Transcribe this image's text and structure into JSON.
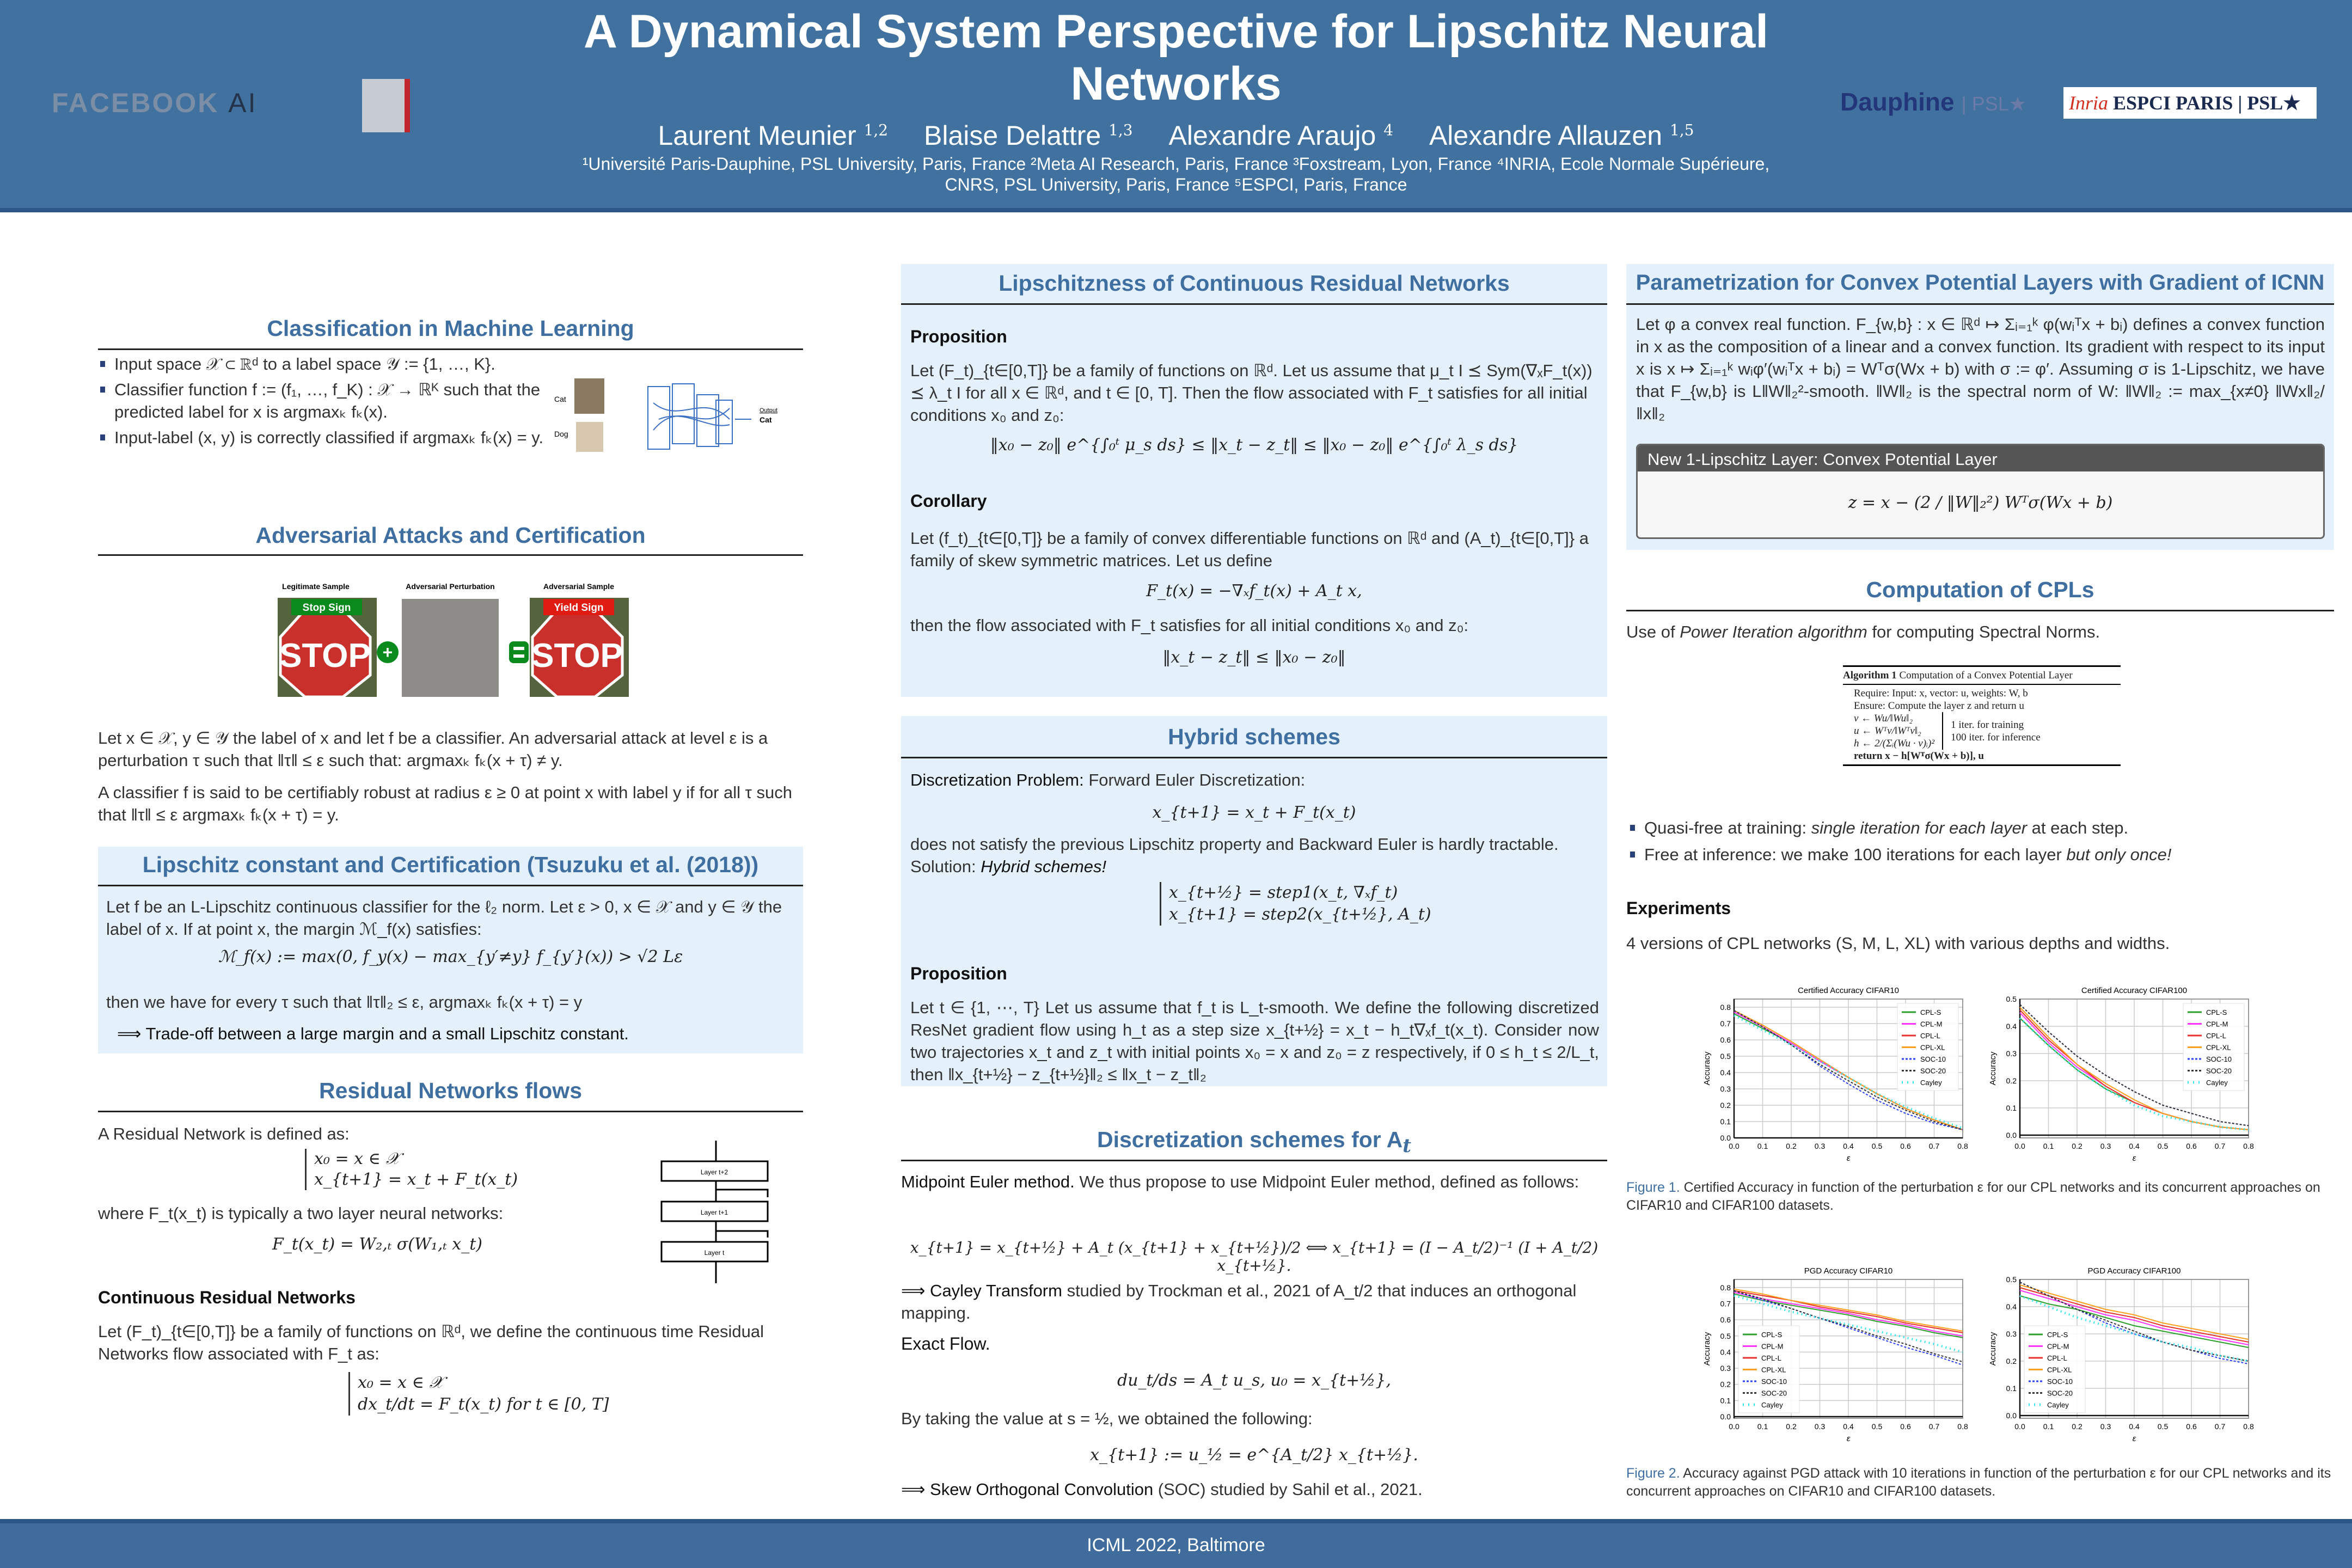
{
  "header": {
    "title": "A Dynamical System Perspective for Lipschitz Neural Networks",
    "authors": [
      {
        "name": "Laurent Meunier",
        "sup": "1,2"
      },
      {
        "name": "Blaise Delattre",
        "sup": "1,3"
      },
      {
        "name": "Alexandre Araujo",
        "sup": "4"
      },
      {
        "name": "Alexandre Allauzen",
        "sup": "1,5"
      }
    ],
    "affiliations": "¹Université Paris-Dauphine, PSL University, Paris, France    ²Meta AI Research, Paris, France ³Foxstream, Lyon, France ⁴INRIA, Ecole Normale Supérieure, CNRS, PSL University, Paris, France ⁵ESPCI, Paris, France",
    "logos": {
      "facebook": "FACEBOOK",
      "facebook_ai": "AI",
      "dauphine": "Dauphine",
      "psl": "| PSL★",
      "inria": "Inria",
      "espci": "ESPCI",
      "paris_psl": "PARIS | PSL★"
    }
  },
  "footer": "ICML 2022, Baltimore",
  "left": {
    "classification": {
      "title": "Classification in Machine Learning",
      "bullets": [
        "Input space 𝒳 ⊂ ℝᵈ to a label space 𝒴 := {1, …, K}.",
        "Classifier function f := (f₁, …, f_K) : 𝒳 → ℝᴷ such that the predicted label for x is argmaxₖ fₖ(x).",
        "Input-label (x, y) is correctly classified if argmaxₖ fₖ(x) = y."
      ],
      "fig_labels": {
        "cat": "Cat",
        "dog": "Dog",
        "output": "Output",
        "output_class": "Cat"
      }
    },
    "adversarial": {
      "title": "Adversarial Attacks and Certification",
      "fig": {
        "legit": "Legitimate Sample",
        "perturb": "Adversarial Perturbation",
        "adv": "Adversarial Sample",
        "stop_label": "Stop Sign",
        "yield_label": "Yield Sign",
        "sign_text": "STOP"
      },
      "p1": "Let x ∈ 𝒳, y ∈ 𝒴 the label of x and let f be a classifier. An adversarial attack at level ε is a perturbation τ such that ‖τ‖ ≤ ε such that: argmaxₖ fₖ(x + τ) ≠ y.",
      "p2": "A classifier f is said to be certifiably robust at radius ε ≥ 0 at point x with label y if for all τ such that ‖τ‖ ≤ ε argmaxₖ fₖ(x + τ) = y."
    },
    "lipschitz": {
      "title": "Lipschitz constant and Certification (Tsuzuku et al. (2018))",
      "p1": "Let f be an L-Lipschitz continuous classifier for the ℓ₂ norm. Let ε > 0, x ∈ 𝒳 and y ∈ 𝒴 the label of x. If at point x, the margin ℳ_f(x) satisfies:",
      "eq": "ℳ_f(x) := max(0, f_y(x) − max_{y′≠y} f_{y′}(x)) > √2 Lε",
      "p2": "then we have for every τ such that ‖τ‖₂ ≤ ε, argmaxₖ fₖ(x + τ) = y",
      "p3": "⟹  Trade-off between a large margin and a small Lipschitz constant."
    },
    "residual": {
      "title": "Residual Networks flows",
      "p1": "A Residual Network is defined as:",
      "eq1a": "x₀   = x ∈ 𝒳",
      "eq1b": "x_{t+1} = x_t + F_t(x_t)",
      "p2": "where F_t(x_t) is typically a two layer neural networks:",
      "eq2": "F_t(x_t) = W₂,ₜ σ(W₁,ₜ x_t)",
      "layers": [
        "Layer t+2",
        "Layer t+1",
        "Layer t"
      ],
      "sub": "Continuous Residual Networks",
      "p3": "Let (F_t)_{t∈[0,T]} be a family of functions on ℝᵈ, we define the continuous time Residual Networks flow associated with F_t as:",
      "eq3a": "x₀ = x ∈ 𝒳",
      "eq3b": "dx_t/dt = F_t(x_t) for t ∈ [0, T]"
    }
  },
  "middle": {
    "lipcont": {
      "title": "Lipschitzness of Continuous Residual Networks",
      "prop": "Proposition",
      "p1": "Let (F_t)_{t∈[0,T]} be a family of functions on ℝᵈ. Let us assume that μ_t I ⪯ Sym(∇ₓF_t(x)) ⪯ λ_t I for all x ∈ ℝᵈ, and t ∈ [0, T]. Then the flow associated with F_t satisfies for all initial conditions x₀ and z₀:",
      "eq1": "‖x₀ − z₀‖ e^{∫₀ᵗ μ_s ds} ≤ ‖x_t − z_t‖ ≤ ‖x₀ − z₀‖ e^{∫₀ᵗ λ_s ds}",
      "cor": "Corollary",
      "p2": "Let (f_t)_{t∈[0,T]} be a family of convex differentiable functions on ℝᵈ and (A_t)_{t∈[0,T]} a family of skew symmetric matrices. Let us define",
      "eq2": "F_t(x) = −∇ₓf_t(x) + A_t x,",
      "p3": "then the flow associated with F_t satisfies for all initial conditions x₀ and z₀:",
      "eq3": "‖x_t − z_t‖ ≤ ‖x₀ − z₀‖"
    },
    "hybrid": {
      "title": "Hybrid schemes",
      "p1_b": "Discretization Problem:",
      "p1": " Forward Euler Discretization:",
      "eq1": "x_{t+1} = x_t + F_t(x_t)",
      "p2": "does not satisfy the previous Lipschitz property and Backward Euler is hardly tractable. Solution: ",
      "p2_i": "Hybrid schemes!",
      "eq2a": "x_{t+½}  = step1(x_t, ∇ₓf_t)",
      "eq2b": "x_{t+1}  = step2(x_{t+½}, A_t)",
      "prop": "Proposition",
      "p3": "Let t ∈ {1, ⋯, T} Let us assume that f_t is L_t-smooth. We define the following discretized ResNet gradient flow using h_t as a step size x_{t+½} = x_t − h_t∇ₓf_t(x_t). Consider now two trajectories x_t and z_t with initial points x₀ = x and z₀ = z respectively, if 0 ≤ h_t ≤ 2/L_t, then ‖x_{t+½} − z_{t+½}‖₂ ≤ ‖x_t − z_t‖₂"
    },
    "disc": {
      "title": "Discretization schemes for A",
      "title_sub": "t",
      "p1_b": "Midpoint Euler method.",
      "p1": " We thus propose to use Midpoint Euler method, defined as follows:",
      "eq1": "x_{t+1} = x_{t+½} + A_t (x_{t+1} + x_{t+½})/2  ⟺  x_{t+1} = (I − A_t/2)⁻¹ (I + A_t/2) x_{t+½}.",
      "p2_b": "⟹  Cayley Transform",
      "p2": " studied by Trockman et al., 2021 of A_t/2 that induces an orthogonal mapping.",
      "sub": "Exact Flow.",
      "eq2": "du_t/ds = A_t u_s,    u₀ = x_{t+½},",
      "p3": "By taking the value at s = ½, we obtained the following:",
      "eq3": "x_{t+1} := u_½ = e^{A_t/2} x_{t+½}.",
      "p4_b": "⟹  Skew Orthogonal Convolution",
      "p4": " (SOC) studied by Sahil et al., 2021."
    }
  },
  "right": {
    "param": {
      "title": "Parametrization for Convex Potential Layers with Gradient of ICNN",
      "p1": "Let φ a convex real function. F_{w,b} : x ∈ ℝᵈ ↦ Σᵢ₌₁ᵏ φ(wᵢᵀx + bᵢ) defines a convex function in x as the composition of a linear and a convex function. Its gradient with respect to its input x is x ↦ Σᵢ₌₁ᵏ wᵢφ′(wᵢᵀx + bᵢ) = Wᵀσ(Wx + b) with σ := φ′. Assuming σ is 1-Lipschitz, we have that F_{w,b} is L‖W‖₂²-smooth. ‖W‖₂ is the spectral norm of W: ‖W‖₂ := max_{x≠0} ‖Wx‖₂/‖x‖₂",
      "box_title": "New 1-Lipschitz Layer: Convex Potential Layer",
      "box_eq": "z = x − (2 / ‖W‖₂²) Wᵀσ(Wx + b)"
    },
    "cpl": {
      "title": "Computation of CPLs",
      "p1": "Use of ",
      "p1_i": "Power Iteration algorithm",
      "p1_end": " for computing Spectral Norms.",
      "alg": {
        "title_b": "Algorithm 1",
        "title": " Computation of a Convex Potential Layer",
        "require": "Require: Input: x, vector: u, weights: W, b",
        "ensure": "Ensure: Compute the layer z and return u",
        "l1": "v ← Wu/‖Wu‖₂",
        "l2": "u ← Wᵀv/‖Wᵀv‖₂",
        "l3": "h ← 2/(Σᵢ(Wu · v)ᵢ)²",
        "note1": "1 iter. for training",
        "note2": "100 iter. for inference",
        "ret": "return x − h[Wᵀσ(Wx + b)], u"
      },
      "bullets": [
        {
          "a": "Quasi-free at training: ",
          "i": "single iteration for each layer",
          "b": " at each step."
        },
        {
          "a": "Free at inference: we make 100 iterations for each layer ",
          "i": "but only once!",
          "b": ""
        }
      ],
      "exp_title": "Experiments",
      "exp_text": "4 versions of CPL networks (S, M, L, XL) with various depths and widths.",
      "fig1_label": "Figure 1.",
      "fig1_cap": " Certified Accuracy in function of the perturbation ε for our CPL networks and its concurrent approaches on CIFAR10 and CIFAR100 datasets.",
      "fig2_label": "Figure 2.",
      "fig2_cap": " Accuracy against PGD attack with 10 iterations in function of the perturbation ε for our CPL networks and its concurrent approaches on CIFAR10 and CIFAR100 datasets."
    }
  },
  "chart_data": [
    {
      "type": "line",
      "title": "Certified Accuracy CIFAR10",
      "xlabel": "ε",
      "ylabel": "Accuracy",
      "x": [
        0,
        0.1,
        0.2,
        0.3,
        0.4,
        0.5,
        0.6,
        0.7,
        0.8
      ],
      "xlim": [
        0,
        0.8
      ],
      "ylim": [
        0,
        0.85
      ],
      "yticks": [
        0,
        0.1,
        0.2,
        0.3,
        0.4,
        0.5,
        0.6,
        0.7,
        0.8
      ],
      "grid": true,
      "legend": "top-right",
      "series": [
        {
          "name": "CPL-S",
          "color": "#2ca02c",
          "values": [
            0.76,
            0.67,
            0.58,
            0.47,
            0.37,
            0.27,
            0.18,
            0.11,
            0.05
          ]
        },
        {
          "name": "CPL-M",
          "color": "#ff33ff",
          "values": [
            0.77,
            0.68,
            0.58,
            0.47,
            0.37,
            0.27,
            0.18,
            0.11,
            0.05
          ]
        },
        {
          "name": "CPL-L",
          "color": "#e8322b",
          "values": [
            0.78,
            0.69,
            0.59,
            0.48,
            0.37,
            0.27,
            0.18,
            0.11,
            0.05
          ]
        },
        {
          "name": "CPL-XL",
          "color": "#ff9f1c",
          "values": [
            0.78,
            0.69,
            0.59,
            0.48,
            0.37,
            0.27,
            0.18,
            0.11,
            0.05
          ]
        },
        {
          "name": "SOC-10",
          "color": "#2b3fff",
          "values": [
            0.78,
            0.68,
            0.57,
            0.44,
            0.33,
            0.23,
            0.15,
            0.09,
            0.05
          ]
        },
        {
          "name": "SOC-20",
          "color": "#333333",
          "values": [
            0.78,
            0.68,
            0.57,
            0.45,
            0.35,
            0.25,
            0.17,
            0.1,
            0.05
          ]
        },
        {
          "name": "Cayley",
          "color": "#33e6f0",
          "values": [
            0.75,
            0.66,
            0.57,
            0.47,
            0.37,
            0.27,
            0.19,
            0.12,
            0.06
          ]
        }
      ]
    },
    {
      "type": "line",
      "title": "Certified Accuracy CIFAR100",
      "xlabel": "ε",
      "ylabel": "Accuracy",
      "x": [
        0,
        0.1,
        0.2,
        0.3,
        0.4,
        0.5,
        0.6,
        0.7,
        0.8
      ],
      "xlim": [
        0,
        0.8
      ],
      "ylim": [
        -0.01,
        0.5
      ],
      "yticks": [
        0,
        0.1,
        0.2,
        0.3,
        0.4,
        0.5
      ],
      "grid": true,
      "legend": "top-right",
      "series": [
        {
          "name": "CPL-S",
          "color": "#2ca02c",
          "values": [
            0.43,
            0.33,
            0.24,
            0.17,
            0.12,
            0.08,
            0.05,
            0.03,
            0.02
          ]
        },
        {
          "name": "CPL-M",
          "color": "#ff33ff",
          "values": [
            0.45,
            0.34,
            0.25,
            0.18,
            0.12,
            0.08,
            0.05,
            0.03,
            0.02
          ]
        },
        {
          "name": "CPL-L",
          "color": "#e8322b",
          "values": [
            0.46,
            0.35,
            0.26,
            0.18,
            0.12,
            0.08,
            0.05,
            0.03,
            0.02
          ]
        },
        {
          "name": "CPL-XL",
          "color": "#ff9f1c",
          "values": [
            0.47,
            0.36,
            0.26,
            0.19,
            0.13,
            0.08,
            0.05,
            0.03,
            0.02
          ]
        },
        {
          "name": "SOC-10",
          "color": "#2b3fff",
          "values": [
            0.48,
            0.38,
            0.29,
            0.22,
            0.16,
            0.11,
            0.08,
            0.05,
            0.035
          ]
        },
        {
          "name": "SOC-20",
          "color": "#333333",
          "values": [
            0.48,
            0.38,
            0.29,
            0.22,
            0.16,
            0.11,
            0.08,
            0.05,
            0.035
          ]
        },
        {
          "name": "Cayley",
          "color": "#33e6f0",
          "values": [
            0.43,
            0.33,
            0.24,
            0.17,
            0.11,
            0.07,
            0.05,
            0.03,
            0.02
          ]
        }
      ]
    },
    {
      "type": "line",
      "title": "PGD Accuracy CIFAR10",
      "xlabel": "ε",
      "ylabel": "Accuracy",
      "x": [
        0,
        0.1,
        0.2,
        0.3,
        0.4,
        0.5,
        0.6,
        0.7,
        0.8
      ],
      "xlim": [
        0,
        0.8
      ],
      "ylim": [
        -0.01,
        0.85
      ],
      "yticks": [
        0,
        0.1,
        0.2,
        0.3,
        0.4,
        0.5,
        0.6,
        0.7,
        0.8
      ],
      "grid": true,
      "legend": "bottom-left",
      "series": [
        {
          "name": "CPL-S",
          "color": "#2ca02c",
          "values": [
            0.76,
            0.72,
            0.69,
            0.66,
            0.63,
            0.59,
            0.56,
            0.52,
            0.49
          ]
        },
        {
          "name": "CPL-M",
          "color": "#ff33ff",
          "values": [
            0.77,
            0.73,
            0.7,
            0.67,
            0.64,
            0.6,
            0.57,
            0.53,
            0.5
          ]
        },
        {
          "name": "CPL-L",
          "color": "#e8322b",
          "values": [
            0.78,
            0.75,
            0.72,
            0.68,
            0.65,
            0.62,
            0.58,
            0.55,
            0.52
          ]
        },
        {
          "name": "CPL-XL",
          "color": "#ff9f1c",
          "values": [
            0.79,
            0.76,
            0.72,
            0.69,
            0.66,
            0.63,
            0.59,
            0.56,
            0.53
          ]
        },
        {
          "name": "SOC-10",
          "color": "#2b3fff",
          "values": [
            0.78,
            0.72,
            0.67,
            0.61,
            0.55,
            0.49,
            0.43,
            0.38,
            0.32
          ]
        },
        {
          "name": "SOC-20",
          "color": "#333333",
          "values": [
            0.78,
            0.73,
            0.67,
            0.61,
            0.56,
            0.5,
            0.45,
            0.39,
            0.34
          ]
        },
        {
          "name": "Cayley",
          "color": "#33e6f0",
          "values": [
            0.75,
            0.7,
            0.65,
            0.61,
            0.57,
            0.53,
            0.49,
            0.45,
            0.4
          ]
        }
      ]
    },
    {
      "type": "line",
      "title": "PGD Accuracy CIFAR100",
      "xlabel": "ε",
      "ylabel": "Accuracy",
      "x": [
        0,
        0.1,
        0.2,
        0.3,
        0.4,
        0.5,
        0.6,
        0.7,
        0.8
      ],
      "xlim": [
        0,
        0.8
      ],
      "ylim": [
        -0.01,
        0.5
      ],
      "yticks": [
        0,
        0.1,
        0.2,
        0.3,
        0.4,
        0.5
      ],
      "grid": true,
      "legend": "bottom-left",
      "series": [
        {
          "name": "CPL-S",
          "color": "#2ca02c",
          "values": [
            0.44,
            0.41,
            0.39,
            0.36,
            0.33,
            0.31,
            0.29,
            0.27,
            0.25
          ]
        },
        {
          "name": "CPL-M",
          "color": "#ff33ff",
          "values": [
            0.46,
            0.43,
            0.4,
            0.37,
            0.35,
            0.32,
            0.3,
            0.28,
            0.26
          ]
        },
        {
          "name": "CPL-L",
          "color": "#e8322b",
          "values": [
            0.47,
            0.44,
            0.41,
            0.38,
            0.36,
            0.33,
            0.31,
            0.29,
            0.27
          ]
        },
        {
          "name": "CPL-XL",
          "color": "#ff9f1c",
          "values": [
            0.48,
            0.45,
            0.42,
            0.39,
            0.37,
            0.34,
            0.32,
            0.3,
            0.28
          ]
        },
        {
          "name": "SOC-10",
          "color": "#2b3fff",
          "values": [
            0.49,
            0.44,
            0.39,
            0.34,
            0.3,
            0.27,
            0.24,
            0.21,
            0.19
          ]
        },
        {
          "name": "SOC-20",
          "color": "#333333",
          "values": [
            0.49,
            0.44,
            0.39,
            0.35,
            0.31,
            0.27,
            0.24,
            0.22,
            0.2
          ]
        },
        {
          "name": "Cayley",
          "color": "#33e6f0",
          "values": [
            0.44,
            0.4,
            0.36,
            0.33,
            0.3,
            0.27,
            0.25,
            0.22,
            0.2
          ]
        }
      ]
    }
  ]
}
